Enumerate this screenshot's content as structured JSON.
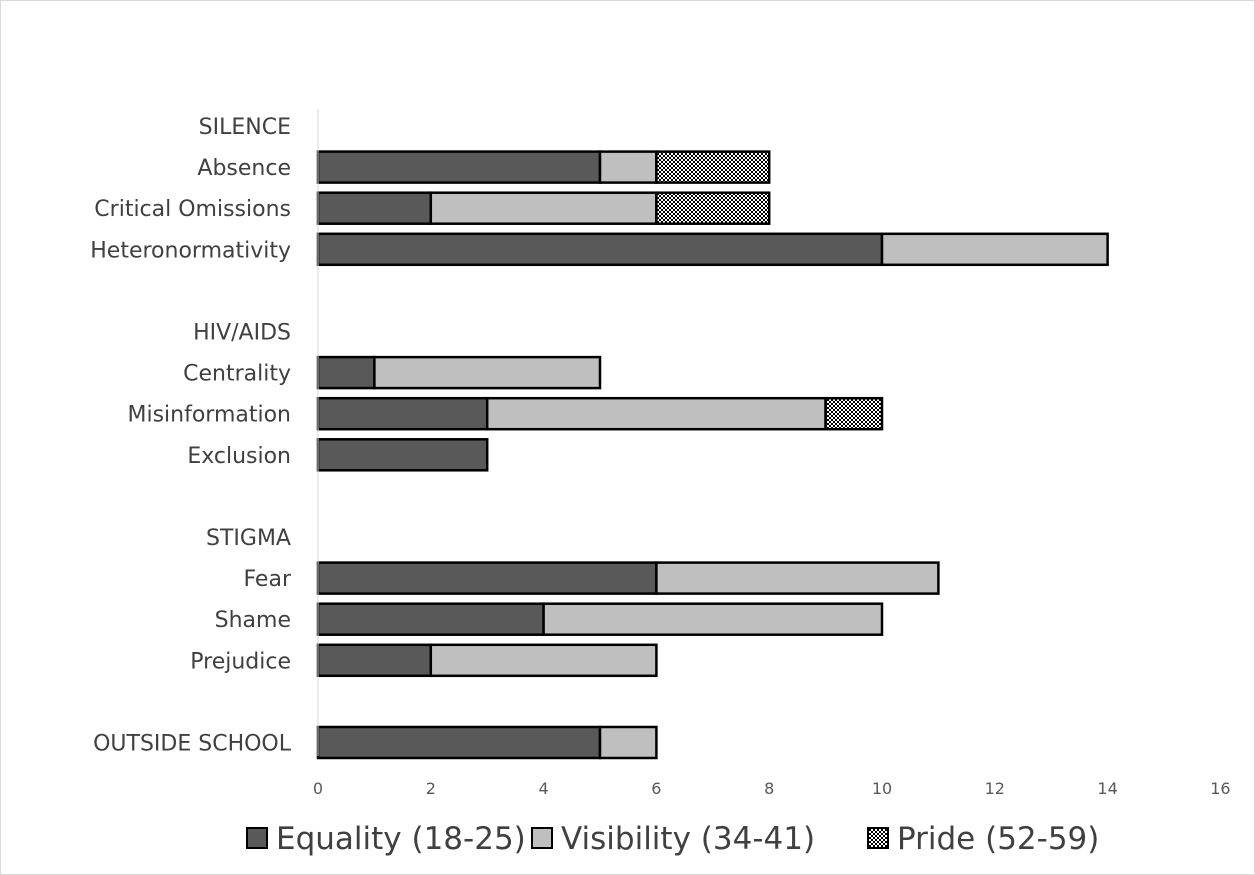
{
  "chart_data": {
    "type": "bar",
    "orientation": "horizontal",
    "stacked": true,
    "title": "",
    "xlabel": "",
    "ylabel": "",
    "xlim": [
      0,
      16
    ],
    "xticks": [
      0,
      2,
      4,
      6,
      8,
      10,
      12,
      14,
      16
    ],
    "grid": false,
    "legend_position": "bottom",
    "categories": [
      "SILENCE",
      "Absence",
      "Critical Omissions",
      "Heteronormativity",
      "",
      "HIV/AIDS",
      "Centrality",
      "Misinformation",
      "Exclusion",
      "",
      "STIGMA",
      "Fear",
      "Shame",
      "Prejudice",
      "",
      "OUTSIDE SCHOOL"
    ],
    "series": [
      {
        "name": "Equality (18-25)",
        "color": "#595959",
        "pattern": "solid",
        "values": [
          0,
          5,
          2,
          10,
          0,
          0,
          1,
          3,
          3,
          0,
          0,
          6,
          4,
          2,
          0,
          5
        ]
      },
      {
        "name": "Visibility (34-41)",
        "color": "#bfbfbf",
        "pattern": "solid",
        "values": [
          0,
          1,
          4,
          4,
          0,
          0,
          4,
          6,
          0,
          0,
          0,
          5,
          6,
          4,
          0,
          1
        ]
      },
      {
        "name": "Pride (52-59)",
        "color": "#000000",
        "pattern": "checkerboard",
        "values": [
          0,
          2,
          2,
          0,
          0,
          0,
          0,
          1,
          0,
          0,
          0,
          0,
          0,
          0,
          0,
          0
        ]
      }
    ]
  }
}
